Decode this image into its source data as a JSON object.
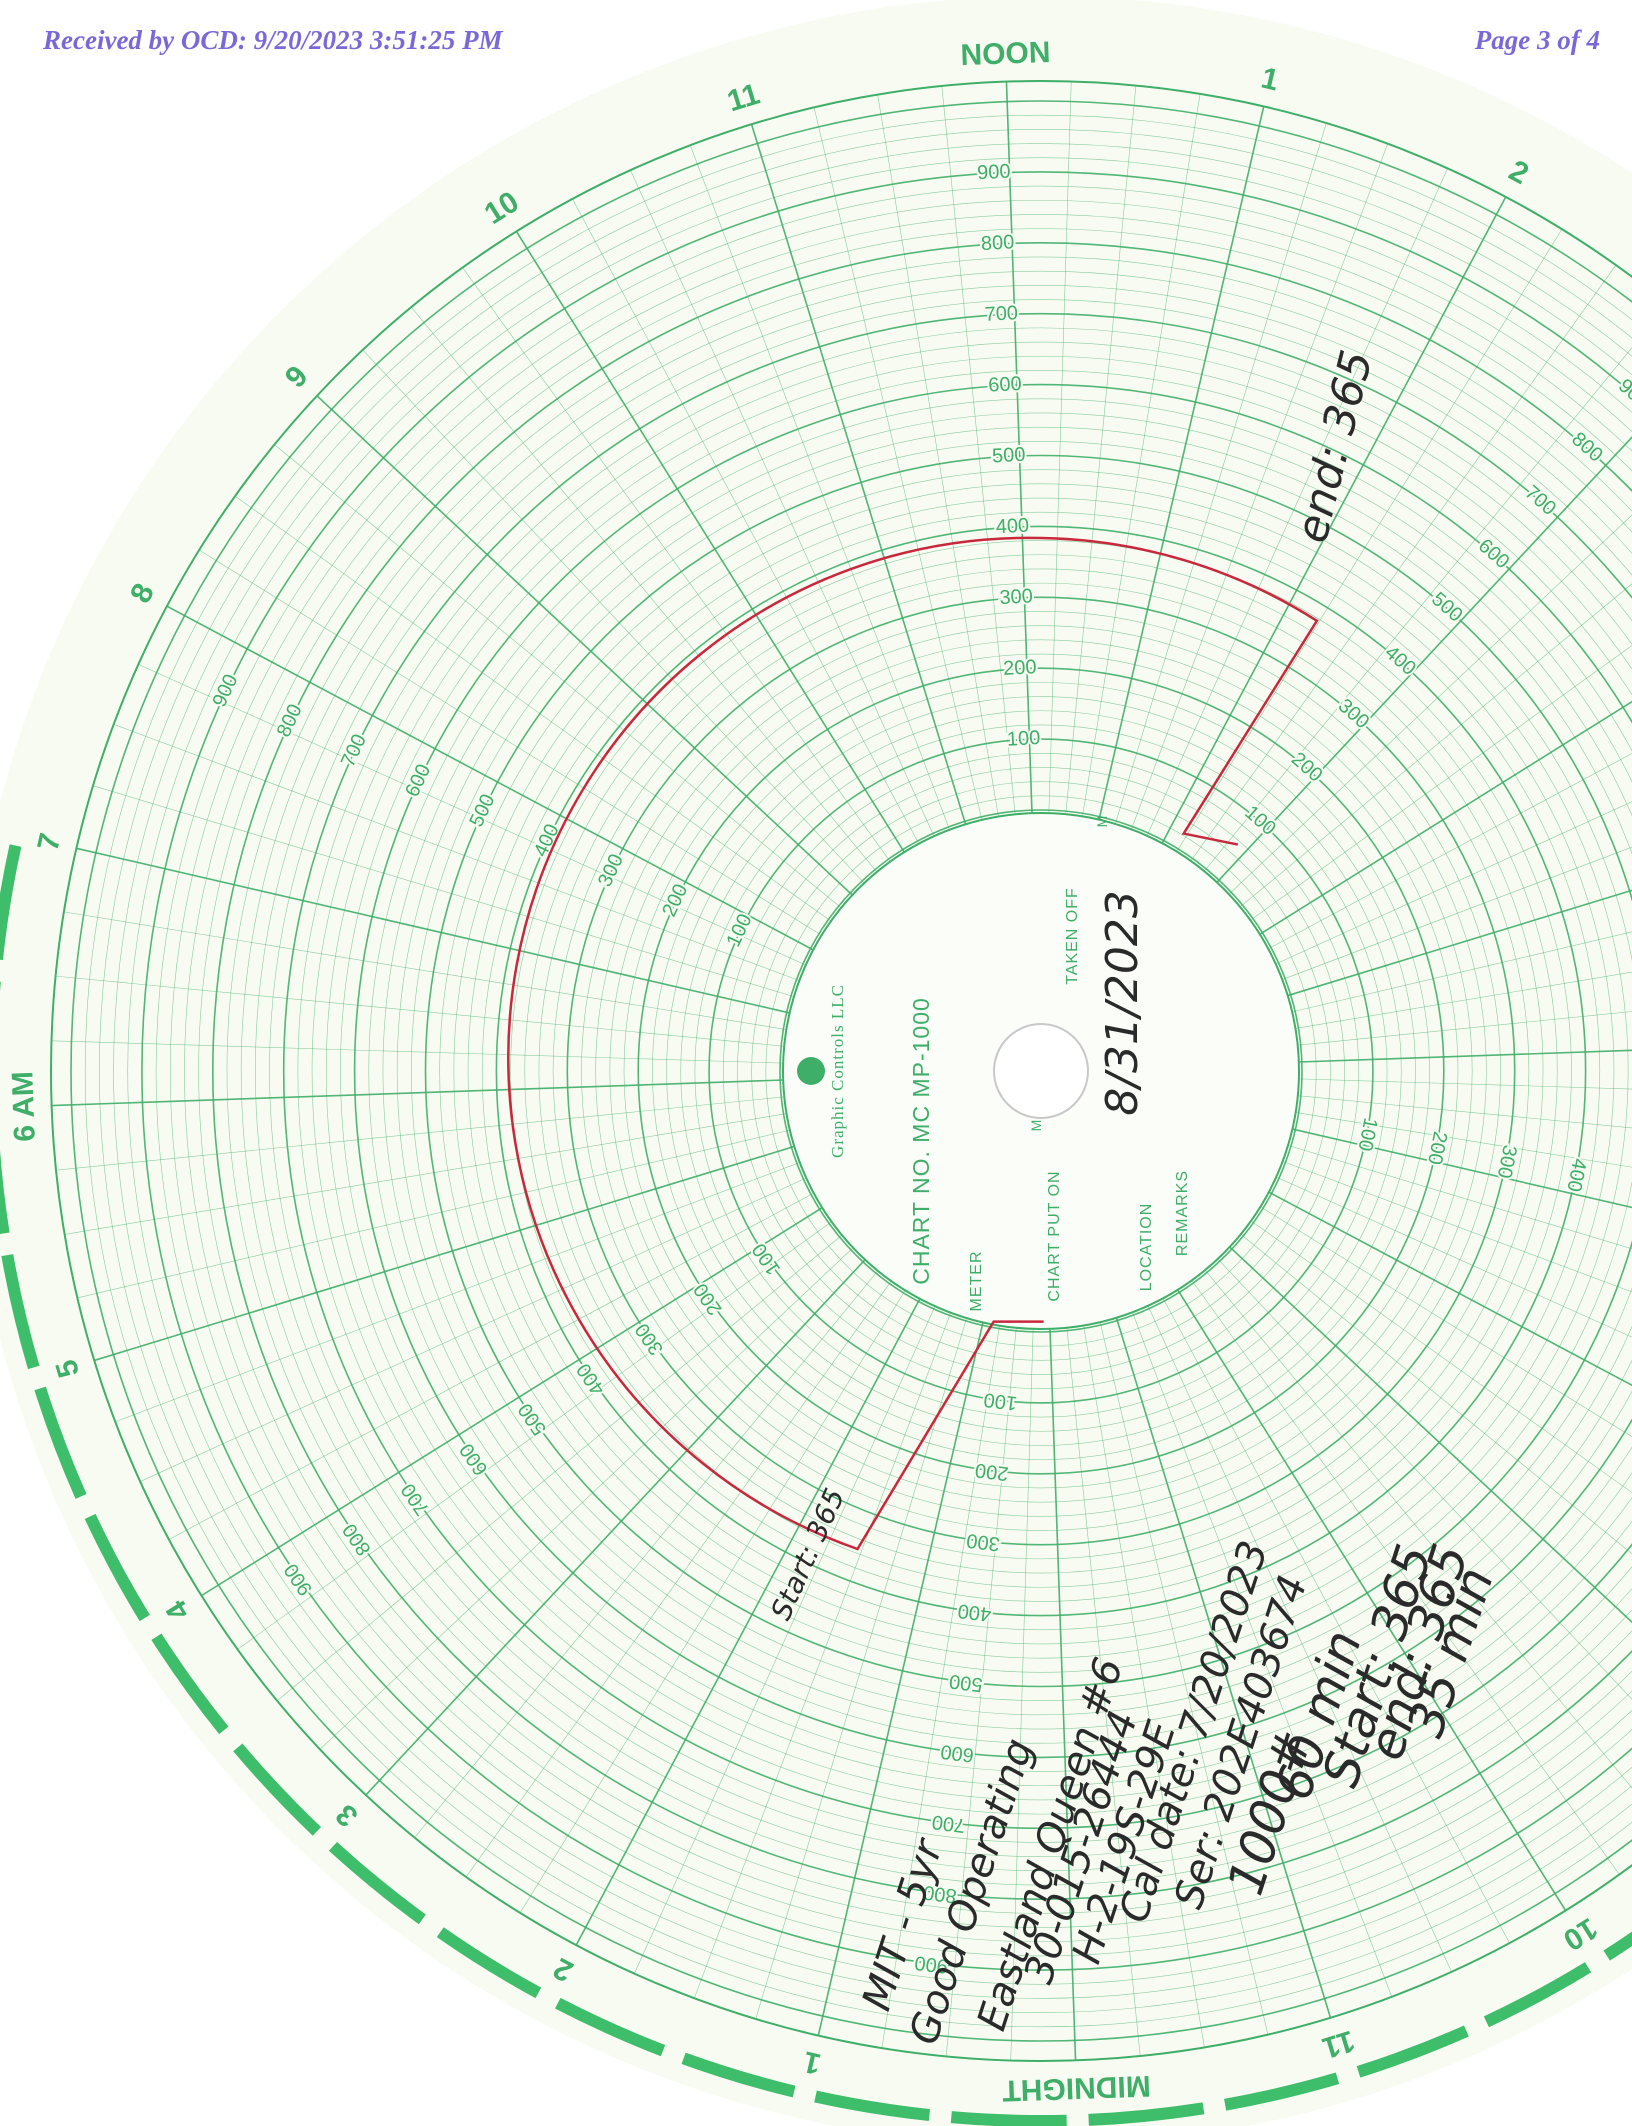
{
  "header": {
    "received": "Received by OCD: 9/20/2023 3:51:25 PM",
    "page": "Page 3 of 4"
  },
  "hours": [
    "NOON",
    "1",
    "2",
    null,
    null,
    null,
    null,
    null,
    null,
    null,
    "10",
    "11",
    "MIDNIGHT",
    "1",
    "2",
    "3",
    "4",
    "5",
    "6 AM",
    "7",
    "8",
    "9",
    "10",
    "11"
  ],
  "scale": {
    "labels": [
      100,
      200,
      300,
      400,
      500,
      600,
      700,
      800,
      900
    ]
  },
  "center": {
    "brand": "Graphic Controls LLC",
    "chart_no": "CHART NO. MC MP-1000",
    "meter": "METER",
    "put_on": "CHART PUT ON",
    "put_on_m": "M",
    "taken_off": "TAKEN OFF",
    "taken_off_m": "M",
    "location": "LOCATION",
    "remarks": "REMARKS"
  },
  "handwriting": {
    "date": "8/31/2023",
    "end_mark": "end: 365",
    "start_mark": "Start: 365",
    "notes": [
      "MIT - 5yr",
      "Good Operating",
      "Eastland Queen #6",
      "30-015-26444",
      "H-2-19S-29E",
      "Cal date: 7/20/2023",
      "Ser: 202E403674",
      "1000#",
      "60 min",
      "Start: 365",
      "end: 365",
      "35 min"
    ]
  }
}
